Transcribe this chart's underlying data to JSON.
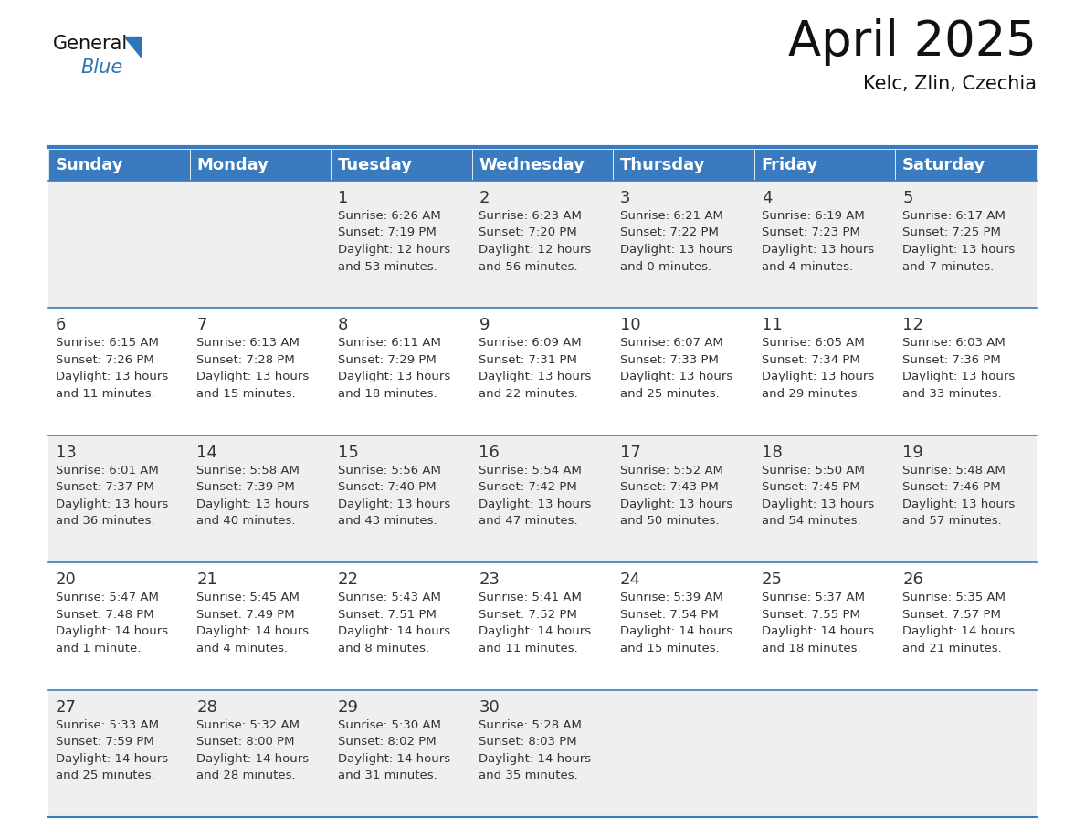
{
  "title": "April 2025",
  "subtitle": "Kelc, Zlin, Czechia",
  "days_of_week": [
    "Sunday",
    "Monday",
    "Tuesday",
    "Wednesday",
    "Thursday",
    "Friday",
    "Saturday"
  ],
  "header_bg": "#3a7abf",
  "header_text": "#ffffff",
  "row_bg_odd": "#efefef",
  "row_bg_even": "#ffffff",
  "cell_text_color": "#333333",
  "day_num_color": "#333333",
  "divider_color": "#3a7abf",
  "calendar_data": [
    [
      {
        "day": "",
        "info": ""
      },
      {
        "day": "",
        "info": ""
      },
      {
        "day": "1",
        "info": "Sunrise: 6:26 AM\nSunset: 7:19 PM\nDaylight: 12 hours\nand 53 minutes."
      },
      {
        "day": "2",
        "info": "Sunrise: 6:23 AM\nSunset: 7:20 PM\nDaylight: 12 hours\nand 56 minutes."
      },
      {
        "day": "3",
        "info": "Sunrise: 6:21 AM\nSunset: 7:22 PM\nDaylight: 13 hours\nand 0 minutes."
      },
      {
        "day": "4",
        "info": "Sunrise: 6:19 AM\nSunset: 7:23 PM\nDaylight: 13 hours\nand 4 minutes."
      },
      {
        "day": "5",
        "info": "Sunrise: 6:17 AM\nSunset: 7:25 PM\nDaylight: 13 hours\nand 7 minutes."
      }
    ],
    [
      {
        "day": "6",
        "info": "Sunrise: 6:15 AM\nSunset: 7:26 PM\nDaylight: 13 hours\nand 11 minutes."
      },
      {
        "day": "7",
        "info": "Sunrise: 6:13 AM\nSunset: 7:28 PM\nDaylight: 13 hours\nand 15 minutes."
      },
      {
        "day": "8",
        "info": "Sunrise: 6:11 AM\nSunset: 7:29 PM\nDaylight: 13 hours\nand 18 minutes."
      },
      {
        "day": "9",
        "info": "Sunrise: 6:09 AM\nSunset: 7:31 PM\nDaylight: 13 hours\nand 22 minutes."
      },
      {
        "day": "10",
        "info": "Sunrise: 6:07 AM\nSunset: 7:33 PM\nDaylight: 13 hours\nand 25 minutes."
      },
      {
        "day": "11",
        "info": "Sunrise: 6:05 AM\nSunset: 7:34 PM\nDaylight: 13 hours\nand 29 minutes."
      },
      {
        "day": "12",
        "info": "Sunrise: 6:03 AM\nSunset: 7:36 PM\nDaylight: 13 hours\nand 33 minutes."
      }
    ],
    [
      {
        "day": "13",
        "info": "Sunrise: 6:01 AM\nSunset: 7:37 PM\nDaylight: 13 hours\nand 36 minutes."
      },
      {
        "day": "14",
        "info": "Sunrise: 5:58 AM\nSunset: 7:39 PM\nDaylight: 13 hours\nand 40 minutes."
      },
      {
        "day": "15",
        "info": "Sunrise: 5:56 AM\nSunset: 7:40 PM\nDaylight: 13 hours\nand 43 minutes."
      },
      {
        "day": "16",
        "info": "Sunrise: 5:54 AM\nSunset: 7:42 PM\nDaylight: 13 hours\nand 47 minutes."
      },
      {
        "day": "17",
        "info": "Sunrise: 5:52 AM\nSunset: 7:43 PM\nDaylight: 13 hours\nand 50 minutes."
      },
      {
        "day": "18",
        "info": "Sunrise: 5:50 AM\nSunset: 7:45 PM\nDaylight: 13 hours\nand 54 minutes."
      },
      {
        "day": "19",
        "info": "Sunrise: 5:48 AM\nSunset: 7:46 PM\nDaylight: 13 hours\nand 57 minutes."
      }
    ],
    [
      {
        "day": "20",
        "info": "Sunrise: 5:47 AM\nSunset: 7:48 PM\nDaylight: 14 hours\nand 1 minute."
      },
      {
        "day": "21",
        "info": "Sunrise: 5:45 AM\nSunset: 7:49 PM\nDaylight: 14 hours\nand 4 minutes."
      },
      {
        "day": "22",
        "info": "Sunrise: 5:43 AM\nSunset: 7:51 PM\nDaylight: 14 hours\nand 8 minutes."
      },
      {
        "day": "23",
        "info": "Sunrise: 5:41 AM\nSunset: 7:52 PM\nDaylight: 14 hours\nand 11 minutes."
      },
      {
        "day": "24",
        "info": "Sunrise: 5:39 AM\nSunset: 7:54 PM\nDaylight: 14 hours\nand 15 minutes."
      },
      {
        "day": "25",
        "info": "Sunrise: 5:37 AM\nSunset: 7:55 PM\nDaylight: 14 hours\nand 18 minutes."
      },
      {
        "day": "26",
        "info": "Sunrise: 5:35 AM\nSunset: 7:57 PM\nDaylight: 14 hours\nand 21 minutes."
      }
    ],
    [
      {
        "day": "27",
        "info": "Sunrise: 5:33 AM\nSunset: 7:59 PM\nDaylight: 14 hours\nand 25 minutes."
      },
      {
        "day": "28",
        "info": "Sunrise: 5:32 AM\nSunset: 8:00 PM\nDaylight: 14 hours\nand 28 minutes."
      },
      {
        "day": "29",
        "info": "Sunrise: 5:30 AM\nSunset: 8:02 PM\nDaylight: 14 hours\nand 31 minutes."
      },
      {
        "day": "30",
        "info": "Sunrise: 5:28 AM\nSunset: 8:03 PM\nDaylight: 14 hours\nand 35 minutes."
      },
      {
        "day": "",
        "info": ""
      },
      {
        "day": "",
        "info": ""
      },
      {
        "day": "",
        "info": ""
      }
    ]
  ],
  "logo_triangle_color": "#2e75b6",
  "title_fontsize": 38,
  "subtitle_fontsize": 15,
  "header_fontsize": 13,
  "day_num_fontsize": 13,
  "cell_fontsize": 9.5,
  "fig_width": 11.88,
  "fig_height": 9.18,
  "dpi": 100
}
